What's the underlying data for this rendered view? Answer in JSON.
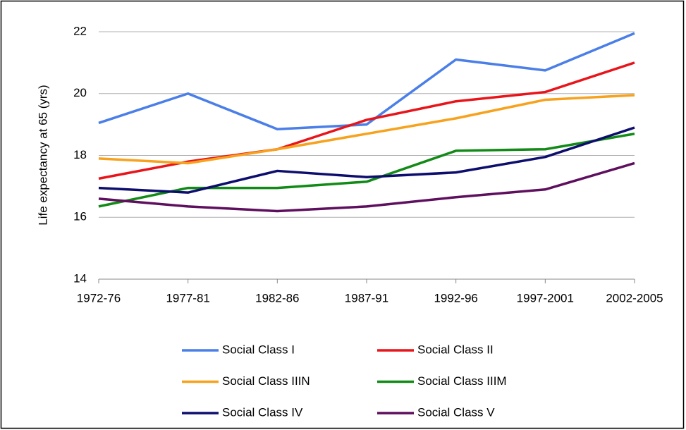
{
  "chart_data": {
    "type": "line",
    "y_label": "Life expectancy at 65 (yrs)",
    "categories": [
      "1972-76",
      "1977-81",
      "1982-86",
      "1987-91",
      "1992-96",
      "1997-2001",
      "2002-2005"
    ],
    "ylim": [
      14,
      22
    ],
    "yticks": [
      14,
      16,
      18,
      20,
      22
    ],
    "grid": true,
    "series": [
      {
        "name": "Social Class I",
        "color": "#4a7ee8",
        "values": [
          19.05,
          20.0,
          18.85,
          19.0,
          21.1,
          20.75,
          21.95
        ]
      },
      {
        "name": "Social Class II",
        "color": "#e8141a",
        "values": [
          17.25,
          17.8,
          18.2,
          19.15,
          19.75,
          20.05,
          21.0
        ]
      },
      {
        "name": "Social Class IIIN",
        "color": "#f7a21d",
        "values": [
          17.9,
          17.75,
          18.2,
          18.7,
          19.2,
          19.8,
          19.95
        ]
      },
      {
        "name": "Social Class IIIM",
        "color": "#128a17",
        "values": [
          16.35,
          16.95,
          16.95,
          17.15,
          18.15,
          18.2,
          18.7
        ]
      },
      {
        "name": "Social Class IV",
        "color": "#0d0d6e",
        "values": [
          16.95,
          16.8,
          17.5,
          17.3,
          17.45,
          17.95,
          18.9
        ]
      },
      {
        "name": "Social Class V",
        "color": "#5e0f5e",
        "values": [
          16.6,
          16.35,
          16.2,
          16.35,
          16.65,
          16.9,
          17.75
        ]
      }
    ]
  }
}
